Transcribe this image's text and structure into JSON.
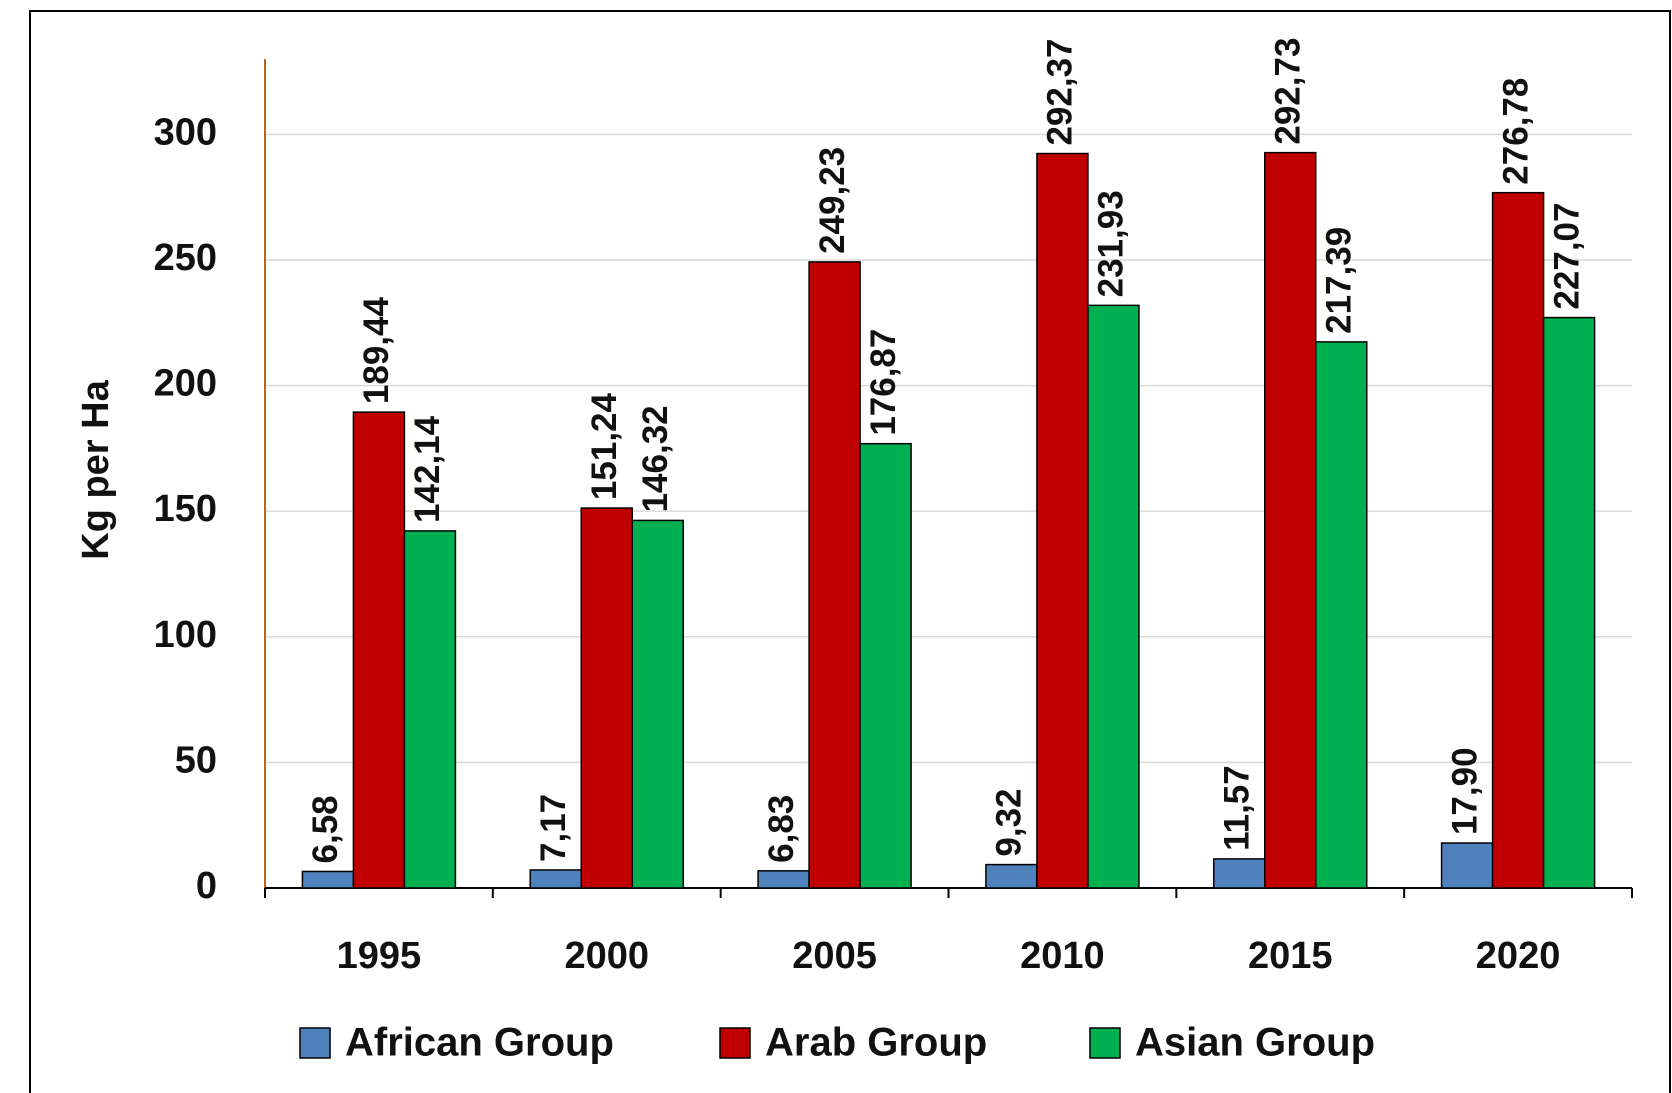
{
  "chart_data": {
    "type": "bar",
    "y_label": "Kg per Ha",
    "categories": [
      "1995",
      "2000",
      "2005",
      "2010",
      "2015",
      "2020"
    ],
    "series": [
      {
        "name": "African Group",
        "color": "#4f81bd",
        "values": [
          6.58,
          7.17,
          6.83,
          9.32,
          11.57,
          17.9
        ],
        "value_labels": [
          "6,58",
          "7,17",
          "6,83",
          "9,32",
          "11,57",
          "17,90"
        ]
      },
      {
        "name": "Arab Group",
        "color": "#c00000",
        "values": [
          189.44,
          151.24,
          249.23,
          292.37,
          292.73,
          276.78
        ],
        "value_labels": [
          "189,44",
          "151,24",
          "249,23",
          "292,37",
          "292,73",
          "276,78"
        ]
      },
      {
        "name": "Asian Group",
        "color": "#00b050",
        "values": [
          142.14,
          146.32,
          176.87,
          231.93,
          217.39,
          227.07
        ],
        "value_labels": [
          "142,14",
          "146,32",
          "176,87",
          "231,93",
          "217,39",
          "227,07"
        ]
      }
    ],
    "ylim": [
      0,
      330
    ],
    "yticks": [
      0,
      50,
      100,
      150,
      200,
      250,
      300
    ],
    "grid": true,
    "legend": "bottom"
  }
}
